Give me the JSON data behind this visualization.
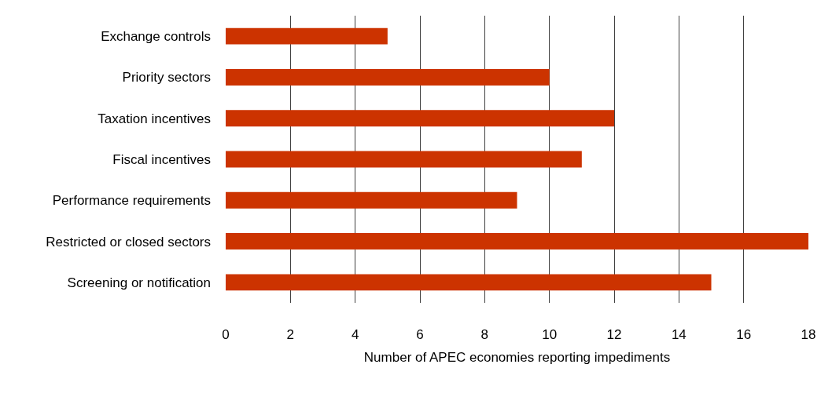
{
  "chart_data": {
    "type": "bar",
    "orientation": "horizontal",
    "xlabel": "Number of APEC economies reporting impediments",
    "categories": [
      "Exchange controls",
      "Priority sectors",
      "Taxation incentives",
      "Fiscal incentives",
      "Performance requirements",
      "Restricted or closed sectors",
      "Screening or notification"
    ],
    "values": [
      5,
      10,
      12,
      11,
      9,
      18,
      15
    ],
    "color": "#cc3300",
    "xlim": [
      0,
      18
    ],
    "xticks": [
      0,
      2,
      4,
      6,
      8,
      10,
      12,
      14,
      16,
      18
    ],
    "grid": "x",
    "legend": false
  }
}
